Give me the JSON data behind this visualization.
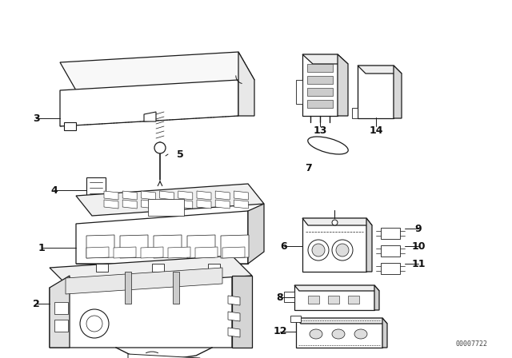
{
  "background_color": "#ffffff",
  "line_color": "#1a1a1a",
  "fig_width": 6.4,
  "fig_height": 4.48,
  "dpi": 100,
  "watermark": "00007722",
  "lw": 0.9
}
